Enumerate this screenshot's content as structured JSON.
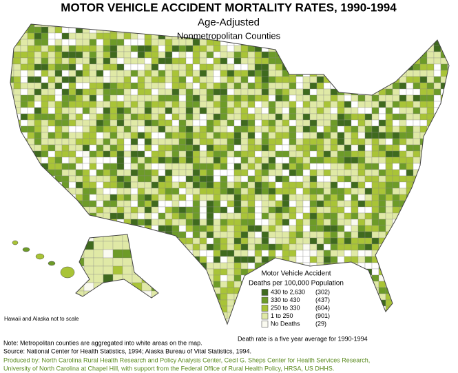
{
  "header": {
    "title": "MOTOR VEHICLE ACCIDENT MORTALITY RATES, 1990-1994",
    "subtitle": "Age-Adjusted",
    "subsubtitle": "Nonmetropolitan Counties"
  },
  "legend": {
    "title": [
      "Motor Vehicle Accident",
      "Deaths per 100,000 Population"
    ],
    "items": [
      {
        "label": "430 to 2,630",
        "count": "(302)",
        "color": "#3f6a1e"
      },
      {
        "label": "330 to 430",
        "count": "(437)",
        "color": "#6d9b28"
      },
      {
        "label": "250 to 330",
        "count": "(604)",
        "color": "#a9c437"
      },
      {
        "label": "1 to 250",
        "count": "(901)",
        "color": "#e0e9a6"
      },
      {
        "label": "No Deaths",
        "count": "(29)",
        "color": "#fafaf0"
      }
    ]
  },
  "notes": {
    "scale": "Hawaii and Alaska not to scale",
    "average": "Death rate is a five year average for 1990-1994"
  },
  "footer": {
    "lines": [
      "Note: Metropolitan counties are aggregated into white areas on the map.",
      "Source: National Center for Health Statistics, 1994; Alaska Bureau of Vital Statistics, 1994."
    ],
    "credits": [
      "Produced by: North Carolina Rural Health Research and Policy Analysis Center, Cecil G. Sheps Center for Health Services Research,",
      "University of North Carolina at Chapel Hill, with support from the Federal Office of Rural Health Policy, HRSA, US DHHS."
    ]
  }
}
